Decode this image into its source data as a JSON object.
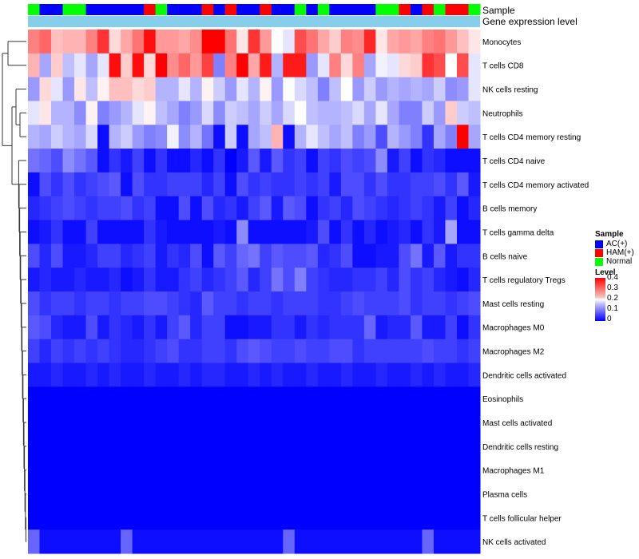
{
  "annotation_labels": {
    "sample": "Sample",
    "gene_expression": "Gene expression level"
  },
  "legend": {
    "sample_title": "Sample",
    "sample_entries": [
      {
        "label": "AC(+)",
        "color": "#0000ff"
      },
      {
        "label": "HAM(+)",
        "color": "#ff0000"
      },
      {
        "label": "Normal",
        "color": "#00ff00"
      }
    ],
    "level_title": "Level",
    "level_ticks": [
      "0.4",
      "0.3",
      "0.2",
      "0.1",
      "0"
    ]
  },
  "chart_data": {
    "type": "heatmap",
    "title": "",
    "color_scale": {
      "min": 0,
      "mid": 0.2,
      "max": 0.4,
      "low_color": "#0000ff",
      "mid_color": "#ffffff",
      "high_color": "#ff0000"
    },
    "gene_expression_color": "#87ceeb",
    "sample_groups": [
      "N",
      "A",
      "A",
      "N",
      "N",
      "A",
      "A",
      "A",
      "A",
      "A",
      "H",
      "N",
      "A",
      "A",
      "A",
      "H",
      "A",
      "H",
      "A",
      "A",
      "H",
      "A",
      "A",
      "N",
      "A",
      "N",
      "A",
      "A",
      "A",
      "A",
      "N",
      "N",
      "H",
      "A",
      "H",
      "N",
      "H",
      "H",
      "N"
    ],
    "rows": [
      "Monocytes",
      "T cells CD8",
      "NK cells resting",
      "Neutrophils",
      "T cells CD4 memory resting",
      "T cells CD4 naive",
      "T cells CD4 memory activated",
      "B cells memory",
      "T cells gamma delta",
      "B cells naive",
      "T cells regulatory  Tregs",
      "Mast cells resting",
      "Macrophages M0",
      "Macrophages M2",
      "Dendritic cells activated",
      "Eosinophils",
      "Mast cells activated",
      "Dendritic cells resting",
      "Macrophages M1",
      "Plasma cells",
      "T cells follicular helper",
      "NK cells activated"
    ],
    "values": [
      [
        0.3,
        0.32,
        0.25,
        0.26,
        0.26,
        0.3,
        0.36,
        0.23,
        0.27,
        0.31,
        0.39,
        0.28,
        0.28,
        0.27,
        0.29,
        0.4,
        0.4,
        0.31,
        0.22,
        0.36,
        0.28,
        0.2,
        0.18,
        0.34,
        0.31,
        0.27,
        0.24,
        0.3,
        0.29,
        0.37,
        0.22,
        0.27,
        0.28,
        0.27,
        0.3,
        0.31,
        0.28,
        0.25,
        0.22
      ],
      [
        0.26,
        0.13,
        0.24,
        0.15,
        0.18,
        0.13,
        0.18,
        0.39,
        0.24,
        0.39,
        0.23,
        0.4,
        0.29,
        0.32,
        0.28,
        0.35,
        0.1,
        0.3,
        0.4,
        0.27,
        0.38,
        0.14,
        0.38,
        0.38,
        0.12,
        0.18,
        0.3,
        0.23,
        0.3,
        0.13,
        0.19,
        0.18,
        0.23,
        0.24,
        0.36,
        0.34,
        0.2,
        0.34,
        0.18
      ],
      [
        0.12,
        0.23,
        0.18,
        0.12,
        0.22,
        0.15,
        0.21,
        0.25,
        0.25,
        0.23,
        0.24,
        0.14,
        0.14,
        0.18,
        0.14,
        0.21,
        0.16,
        0.12,
        0.18,
        0.14,
        0.21,
        0.12,
        0.2,
        0.17,
        0.15,
        0.1,
        0.15,
        0.2,
        0.12,
        0.16,
        0.12,
        0.14,
        0.13,
        0.14,
        0.13,
        0.16,
        0.11,
        0.12,
        0.18
      ],
      [
        0.18,
        0.22,
        0.14,
        0.14,
        0.11,
        0.21,
        0.1,
        0.12,
        0.14,
        0.18,
        0.21,
        0.15,
        0.13,
        0.1,
        0.12,
        0.17,
        0.11,
        0.16,
        0.15,
        0.13,
        0.16,
        0.13,
        0.17,
        0.2,
        0.15,
        0.14,
        0.14,
        0.15,
        0.17,
        0.13,
        0.18,
        0.13,
        0.1,
        0.1,
        0.16,
        0.12,
        0.24,
        0.16,
        0.15
      ],
      [
        0.14,
        0.13,
        0.16,
        0.14,
        0.13,
        0.17,
        0.01,
        0.14,
        0.16,
        0.12,
        0.1,
        0.11,
        0.19,
        0.11,
        0.14,
        0.09,
        0.01,
        0.16,
        0.01,
        0.13,
        0.15,
        0.26,
        0.01,
        0.14,
        0.18,
        0.15,
        0.13,
        0.15,
        0.1,
        0.12,
        0.06,
        0.14,
        0.12,
        0.1,
        0.04,
        0.13,
        0.1,
        0.4,
        0.13
      ],
      [
        0.09,
        0.08,
        0.06,
        0.11,
        0.09,
        0.07,
        0.01,
        0.04,
        0.02,
        0.05,
        0.01,
        0.04,
        0.01,
        0.01,
        0.03,
        0.01,
        0.04,
        0.0,
        0.02,
        0.07,
        0.02,
        0.07,
        0.04,
        0.05,
        0.01,
        0.05,
        0.04,
        0.06,
        0.05,
        0.06,
        0.11,
        0.02,
        0.05,
        0.01,
        0.04,
        0.03,
        0.01,
        0.01,
        0.01
      ],
      [
        0.01,
        0.06,
        0.04,
        0.06,
        0.04,
        0.05,
        0.06,
        0.07,
        0.01,
        0.06,
        0.04,
        0.04,
        0.05,
        0.05,
        0.05,
        0.03,
        0.05,
        0.01,
        0.06,
        0.04,
        0.05,
        0.04,
        0.04,
        0.05,
        0.04,
        0.05,
        0.02,
        0.06,
        0.06,
        0.04,
        0.06,
        0.04,
        0.04,
        0.05,
        0.05,
        0.06,
        0.04,
        0.07,
        0.02
      ],
      [
        0.03,
        0.04,
        0.05,
        0.06,
        0.05,
        0.04,
        0.05,
        0.05,
        0.06,
        0.04,
        0.05,
        0.01,
        0.01,
        0.06,
        0.01,
        0.06,
        0.03,
        0.04,
        0.02,
        0.05,
        0.07,
        0.02,
        0.07,
        0.06,
        0.01,
        0.04,
        0.05,
        0.03,
        0.06,
        0.05,
        0.04,
        0.03,
        0.04,
        0.05,
        0.04,
        0.02,
        0.05,
        0.01,
        0.03
      ],
      [
        0.01,
        0.02,
        0.04,
        0.01,
        0.01,
        0.05,
        0.01,
        0.01,
        0.01,
        0.01,
        0.04,
        0.02,
        0.01,
        0.01,
        0.01,
        0.01,
        0.02,
        0.01,
        0.11,
        0.01,
        0.01,
        0.01,
        0.01,
        0.01,
        0.02,
        0.06,
        0.01,
        0.04,
        0.01,
        0.03,
        0.01,
        0.02,
        0.03,
        0.01,
        0.04,
        0.02,
        0.13,
        0.01,
        0.01
      ],
      [
        0.06,
        0.03,
        0.06,
        0.02,
        0.02,
        0.03,
        0.05,
        0.05,
        0.03,
        0.04,
        0.05,
        0.02,
        0.04,
        0.03,
        0.06,
        0.01,
        0.07,
        0.05,
        0.08,
        0.09,
        0.05,
        0.07,
        0.06,
        0.06,
        0.07,
        0.03,
        0.04,
        0.06,
        0.01,
        0.01,
        0.02,
        0.02,
        0.06,
        0.09,
        0.02,
        0.07,
        0.02,
        0.04,
        0.04
      ],
      [
        0.02,
        0.03,
        0.02,
        0.02,
        0.03,
        0.02,
        0.02,
        0.03,
        0.01,
        0.02,
        0.04,
        0.02,
        0.02,
        0.04,
        0.05,
        0.03,
        0.04,
        0.05,
        0.07,
        0.03,
        0.05,
        0.09,
        0.06,
        0.1,
        0.05,
        0.04,
        0.03,
        0.03,
        0.04,
        0.04,
        0.05,
        0.03,
        0.06,
        0.04,
        0.05,
        0.03,
        0.02,
        0.01,
        0.03
      ],
      [
        0.06,
        0.04,
        0.05,
        0.05,
        0.04,
        0.05,
        0.05,
        0.04,
        0.05,
        0.05,
        0.06,
        0.06,
        0.05,
        0.04,
        0.03,
        0.07,
        0.05,
        0.05,
        0.04,
        0.05,
        0.05,
        0.04,
        0.05,
        0.05,
        0.05,
        0.04,
        0.04,
        0.05,
        0.06,
        0.05,
        0.05,
        0.05,
        0.06,
        0.04,
        0.05,
        0.05,
        0.04,
        0.05,
        0.06
      ],
      [
        0.07,
        0.06,
        0.03,
        0.02,
        0.02,
        0.06,
        0.02,
        0.04,
        0.03,
        0.02,
        0.04,
        0.02,
        0.05,
        0.07,
        0.03,
        0.05,
        0.05,
        0.01,
        0.01,
        0.02,
        0.02,
        0.04,
        0.04,
        0.02,
        0.04,
        0.03,
        0.04,
        0.04,
        0.04,
        0.08,
        0.02,
        0.03,
        0.03,
        0.07,
        0.02,
        0.02,
        0.05,
        0.01,
        0.04
      ],
      [
        0.05,
        0.03,
        0.05,
        0.04,
        0.05,
        0.04,
        0.05,
        0.04,
        0.03,
        0.03,
        0.04,
        0.05,
        0.06,
        0.04,
        0.04,
        0.05,
        0.05,
        0.04,
        0.06,
        0.07,
        0.06,
        0.05,
        0.05,
        0.06,
        0.05,
        0.05,
        0.06,
        0.06,
        0.04,
        0.05,
        0.05,
        0.05,
        0.05,
        0.05,
        0.06,
        0.05,
        0.05,
        0.04,
        0.05
      ],
      [
        0.02,
        0.02,
        0.03,
        0.02,
        0.02,
        0.03,
        0.02,
        0.03,
        0.02,
        0.02,
        0.03,
        0.02,
        0.02,
        0.03,
        0.02,
        0.03,
        0.03,
        0.02,
        0.02,
        0.03,
        0.02,
        0.03,
        0.02,
        0.02,
        0.03,
        0.02,
        0.02,
        0.03,
        0.02,
        0.02,
        0.03,
        0.02,
        0.02,
        0.03,
        0.02,
        0.03,
        0.02,
        0.02,
        0.03
      ],
      [
        0.0,
        0.0,
        0.0,
        0.0,
        0.0,
        0.0,
        0.0,
        0.0,
        0.0,
        0.0,
        0.0,
        0.0,
        0.0,
        0.0,
        0.0,
        0.0,
        0.0,
        0.0,
        0.0,
        0.0,
        0.0,
        0.0,
        0.0,
        0.0,
        0.0,
        0.0,
        0.0,
        0.0,
        0.0,
        0.0,
        0.0,
        0.0,
        0.0,
        0.0,
        0.0,
        0.0,
        0.0,
        0.0,
        0.0
      ],
      [
        0.0,
        0.0,
        0.0,
        0.0,
        0.0,
        0.0,
        0.0,
        0.0,
        0.0,
        0.0,
        0.0,
        0.0,
        0.0,
        0.0,
        0.0,
        0.0,
        0.0,
        0.0,
        0.0,
        0.0,
        0.0,
        0.0,
        0.0,
        0.0,
        0.0,
        0.0,
        0.0,
        0.0,
        0.0,
        0.0,
        0.0,
        0.0,
        0.0,
        0.0,
        0.0,
        0.0,
        0.0,
        0.0,
        0.0
      ],
      [
        0.0,
        0.0,
        0.0,
        0.0,
        0.0,
        0.0,
        0.0,
        0.0,
        0.0,
        0.0,
        0.0,
        0.0,
        0.0,
        0.0,
        0.0,
        0.0,
        0.0,
        0.0,
        0.0,
        0.0,
        0.0,
        0.0,
        0.0,
        0.0,
        0.0,
        0.0,
        0.0,
        0.0,
        0.0,
        0.0,
        0.0,
        0.0,
        0.0,
        0.0,
        0.0,
        0.0,
        0.0,
        0.0,
        0.0
      ],
      [
        0.0,
        0.0,
        0.0,
        0.0,
        0.0,
        0.0,
        0.0,
        0.0,
        0.0,
        0.0,
        0.0,
        0.0,
        0.0,
        0.0,
        0.0,
        0.0,
        0.0,
        0.0,
        0.0,
        0.0,
        0.0,
        0.0,
        0.0,
        0.0,
        0.0,
        0.0,
        0.0,
        0.0,
        0.0,
        0.0,
        0.0,
        0.0,
        0.0,
        0.0,
        0.0,
        0.0,
        0.0,
        0.0,
        0.0
      ],
      [
        0.0,
        0.0,
        0.0,
        0.0,
        0.0,
        0.0,
        0.0,
        0.0,
        0.0,
        0.0,
        0.0,
        0.0,
        0.0,
        0.0,
        0.0,
        0.0,
        0.0,
        0.0,
        0.0,
        0.0,
        0.0,
        0.0,
        0.0,
        0.0,
        0.0,
        0.0,
        0.0,
        0.0,
        0.0,
        0.0,
        0.0,
        0.0,
        0.0,
        0.0,
        0.0,
        0.0,
        0.0,
        0.0,
        0.0
      ],
      [
        0.0,
        0.0,
        0.0,
        0.0,
        0.0,
        0.0,
        0.0,
        0.0,
        0.0,
        0.0,
        0.0,
        0.0,
        0.0,
        0.0,
        0.0,
        0.0,
        0.0,
        0.0,
        0.0,
        0.0,
        0.0,
        0.0,
        0.0,
        0.0,
        0.0,
        0.0,
        0.0,
        0.0,
        0.0,
        0.0,
        0.0,
        0.0,
        0.0,
        0.0,
        0.0,
        0.0,
        0.0,
        0.0,
        0.0
      ],
      [
        0.08,
        0.01,
        0.01,
        0.01,
        0.01,
        0.01,
        0.01,
        0.01,
        0.08,
        0.01,
        0.01,
        0.01,
        0.01,
        0.01,
        0.01,
        0.01,
        0.01,
        0.01,
        0.01,
        0.01,
        0.01,
        0.01,
        0.08,
        0.01,
        0.01,
        0.01,
        0.01,
        0.01,
        0.01,
        0.01,
        0.01,
        0.01,
        0.01,
        0.01,
        0.08,
        0.01,
        0.01,
        0.01,
        0.01
      ]
    ]
  }
}
